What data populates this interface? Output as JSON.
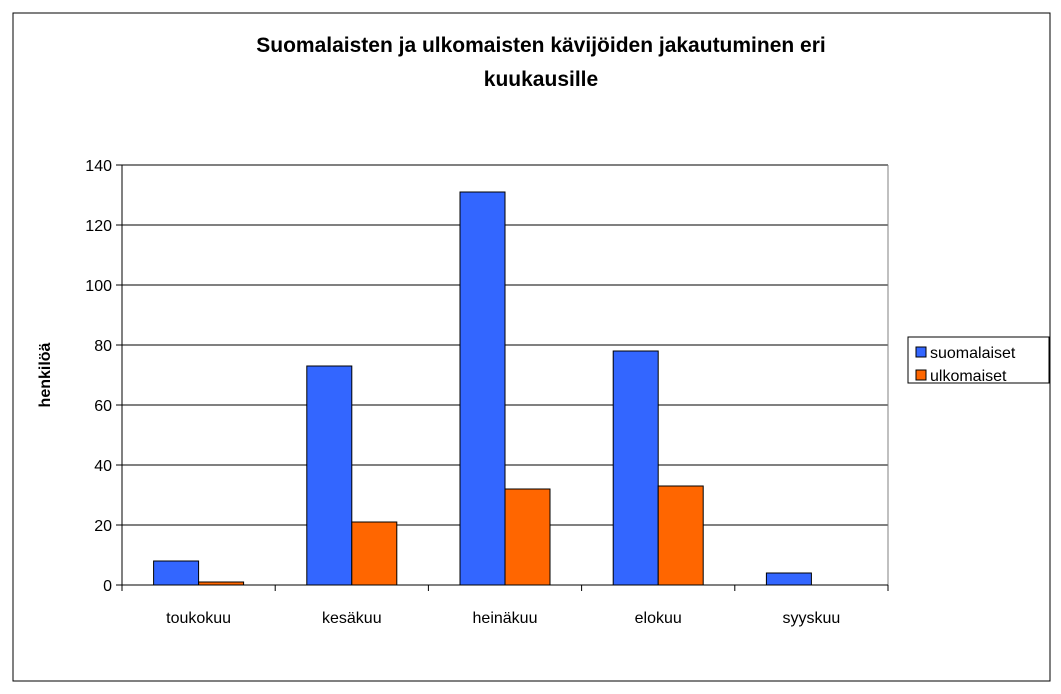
{
  "chart_data": {
    "type": "bar",
    "title": "Suomalaisten ja ulkomaisten kävijöiden jakautuminen eri",
    "subtitle": "kuukausille",
    "y_label": "henkilöä",
    "categories": [
      "toukokuu",
      "kesäkuu",
      "heinäkuu",
      "elokuu",
      "syyskuu"
    ],
    "series": [
      {
        "name": "suomalaiset",
        "color": "#3366ff",
        "values": [
          8,
          73,
          131,
          78,
          4
        ]
      },
      {
        "name": "ulkomaiset",
        "color": "#ff6600",
        "values": [
          1,
          21,
          32,
          33,
          0
        ]
      }
    ],
    "ylim": [
      0,
      140
    ],
    "yticks": [
      0,
      20,
      40,
      60,
      80,
      100,
      120,
      140
    ],
    "grid": true,
    "legend": "right"
  }
}
